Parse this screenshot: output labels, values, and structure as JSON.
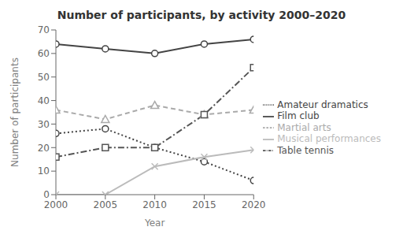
{
  "chart_data": {
    "type": "line",
    "title": "Number of participants, by activity 2000–2020",
    "xlabel": "Year",
    "ylabel": "Number of participants",
    "x": [
      2000,
      2005,
      2010,
      2015,
      2020
    ],
    "series": [
      {
        "name": "Film club",
        "color": "#444444",
        "values": [
          64,
          62,
          60,
          64,
          66
        ],
        "marker": "circle",
        "line_style": "solid"
      },
      {
        "name": "Martial arts",
        "color": "#aaaaaa",
        "values": [
          36,
          32,
          38,
          34,
          36
        ],
        "marker": "triangle",
        "line_style": "dashed"
      },
      {
        "name": "Amateur dramatics",
        "color": "#444444",
        "values": [
          26,
          28,
          20,
          14,
          6
        ],
        "marker": "circle",
        "line_style": "dotted"
      },
      {
        "name": "Table tennis",
        "color": "#555555",
        "values": [
          16,
          20,
          20,
          34,
          54
        ],
        "marker": "square",
        "line_style": "dashdot"
      },
      {
        "name": "Musical performances",
        "color": "#bbbbbb",
        "values": [
          0,
          0,
          12,
          16,
          19
        ],
        "marker": "x",
        "line_style": "solid"
      }
    ],
    "xlim": [
      2000,
      2020
    ],
    "xticks": [
      2000,
      2005,
      2010,
      2015,
      2020
    ],
    "ylim": [
      0,
      70
    ],
    "yticks": [
      0,
      10,
      20,
      30,
      40,
      50,
      60,
      70
    ],
    "grid": false,
    "legend": "right"
  }
}
